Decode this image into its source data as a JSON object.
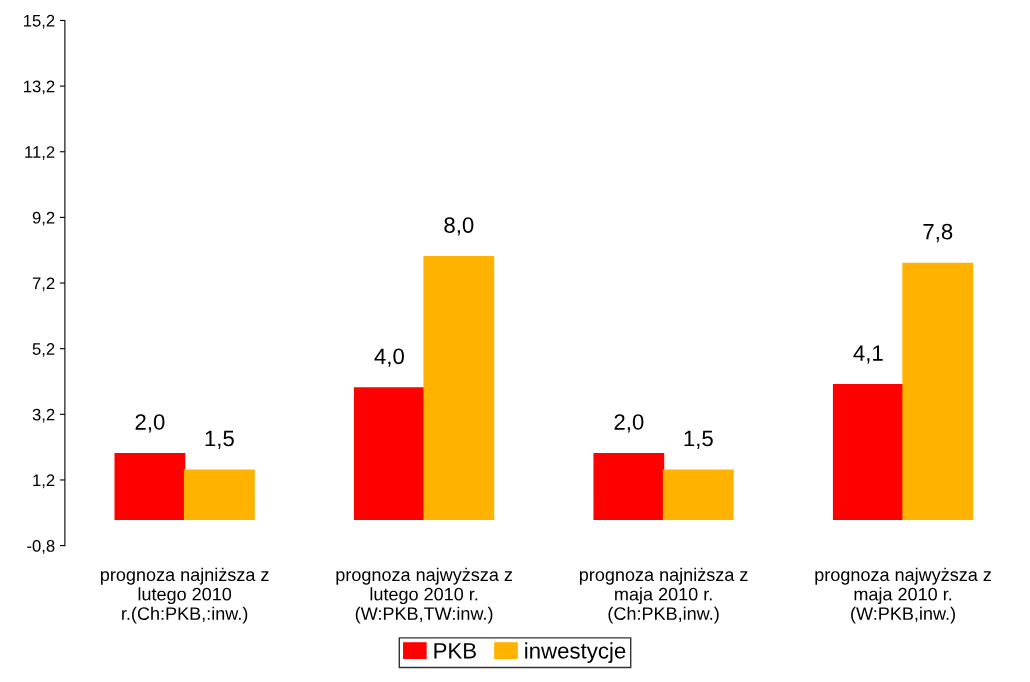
{
  "chart_data": {
    "type": "bar",
    "categories": [
      "prognoza najniższa z\nlutego 2010\nr.(Ch:PKB,:inw.)",
      "prognoza najwyższa z\nlutego 2010 r.\n(W:PKB,TW:inw.)",
      "prognoza najniższa z\nmaja 2010 r.\n(Ch:PKB,inw.)",
      "prognoza najwyższa z\nmaja 2010 r.\n(W:PKB,inw.)"
    ],
    "series": [
      {
        "name": "PKB",
        "color": "#ff0000",
        "values": [
          2.0,
          4.0,
          2.0,
          4.1
        ],
        "value_labels": [
          "2,0",
          "4,0",
          "2,0",
          "4,1"
        ]
      },
      {
        "name": "inwestycje",
        "color": "#ffb300",
        "values": [
          1.5,
          8.0,
          1.5,
          7.8
        ],
        "value_labels": [
          "1,5",
          "8,0",
          "1,5",
          "7,8"
        ]
      }
    ],
    "ylim": [
      -0.8,
      15.2
    ],
    "yticks": [
      {
        "value": -0.8,
        "label": "-0,8"
      },
      {
        "value": 1.2,
        "label": "1,2"
      },
      {
        "value": 3.2,
        "label": "3,2"
      },
      {
        "value": 5.2,
        "label": "5,2"
      },
      {
        "value": 7.2,
        "label": "7,2"
      },
      {
        "value": 9.2,
        "label": "9,2"
      },
      {
        "value": 11.2,
        "label": "11,2"
      },
      {
        "value": 13.2,
        "label": "13,2"
      },
      {
        "value": 15.2,
        "label": "15,2"
      }
    ],
    "grid": false,
    "legend": "bottom"
  }
}
